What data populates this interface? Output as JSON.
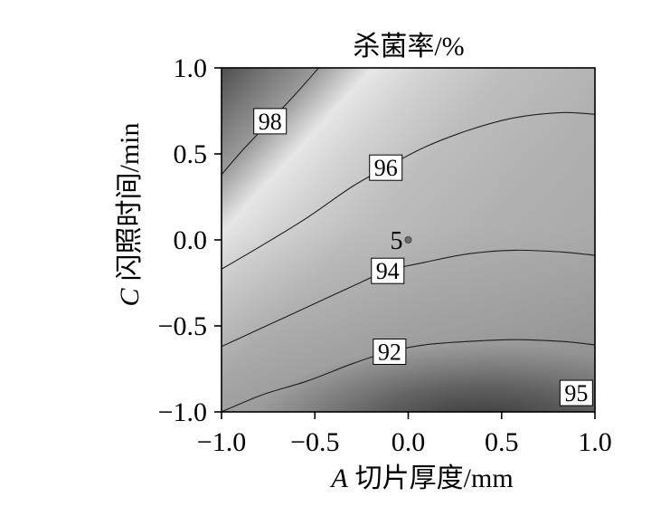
{
  "chart_data": {
    "type": "heatmap",
    "title": "杀菌率/%",
    "xlabel": {
      "var": "A",
      "text": "切片厚度/mm"
    },
    "ylabel": {
      "var": "C",
      "text": "闪照时间/min"
    },
    "xlim": [
      -1.0,
      1.0
    ],
    "ylim": [
      -1.0,
      1.0
    ],
    "xticks": [
      -1.0,
      -0.5,
      0.0,
      0.5,
      1.0
    ],
    "xtick_labels": [
      "−1.0",
      "−0.5",
      "0.0",
      "0.5",
      "1.0"
    ],
    "yticks": [
      -1.0,
      -0.5,
      0.0,
      0.5,
      1.0
    ],
    "ytick_labels": [
      "−1.0",
      "−0.5",
      "0.0",
      "0.5",
      "1.0"
    ],
    "grid": false,
    "contours": [
      {
        "level": 98,
        "label_x": -0.74,
        "points": [
          [
            -1.0,
            0.38
          ],
          [
            -0.88,
            0.53
          ],
          [
            -0.74,
            0.69
          ],
          [
            -0.61,
            0.84
          ],
          [
            -0.48,
            1.0
          ]
        ]
      },
      {
        "level": 96,
        "label_x": -0.12,
        "points": [
          [
            -1.0,
            -0.17
          ],
          [
            -0.78,
            -0.03
          ],
          [
            -0.54,
            0.13
          ],
          [
            -0.3,
            0.31
          ],
          [
            -0.12,
            0.42
          ],
          [
            0.09,
            0.54
          ],
          [
            0.33,
            0.64
          ],
          [
            0.57,
            0.71
          ],
          [
            0.82,
            0.74
          ],
          [
            1.0,
            0.73
          ]
        ]
      },
      {
        "level": 94,
        "label_x": -0.11,
        "points": [
          [
            -1.0,
            -0.62
          ],
          [
            -0.78,
            -0.51
          ],
          [
            -0.54,
            -0.39
          ],
          [
            -0.3,
            -0.27
          ],
          [
            -0.11,
            -0.18
          ],
          [
            0.09,
            -0.13
          ],
          [
            0.33,
            -0.08
          ],
          [
            0.57,
            -0.06
          ],
          [
            0.82,
            -0.07
          ],
          [
            1.0,
            -0.09
          ]
        ]
      },
      {
        "level": 92,
        "label_x": -0.1,
        "points": [
          [
            -1.0,
            -1.0
          ],
          [
            -0.78,
            -0.9
          ],
          [
            -0.54,
            -0.82
          ],
          [
            -0.3,
            -0.72
          ],
          [
            -0.1,
            -0.65
          ],
          [
            0.09,
            -0.61
          ],
          [
            0.33,
            -0.59
          ],
          [
            0.57,
            -0.58
          ],
          [
            0.82,
            -0.59
          ],
          [
            1.0,
            -0.61
          ]
        ]
      }
    ],
    "annotations": [
      {
        "text": "95",
        "x": 0.9,
        "y": -0.89,
        "boxed": true
      }
    ],
    "center_point": {
      "label": "5",
      "x": 0.0,
      "y": 0.0
    }
  }
}
